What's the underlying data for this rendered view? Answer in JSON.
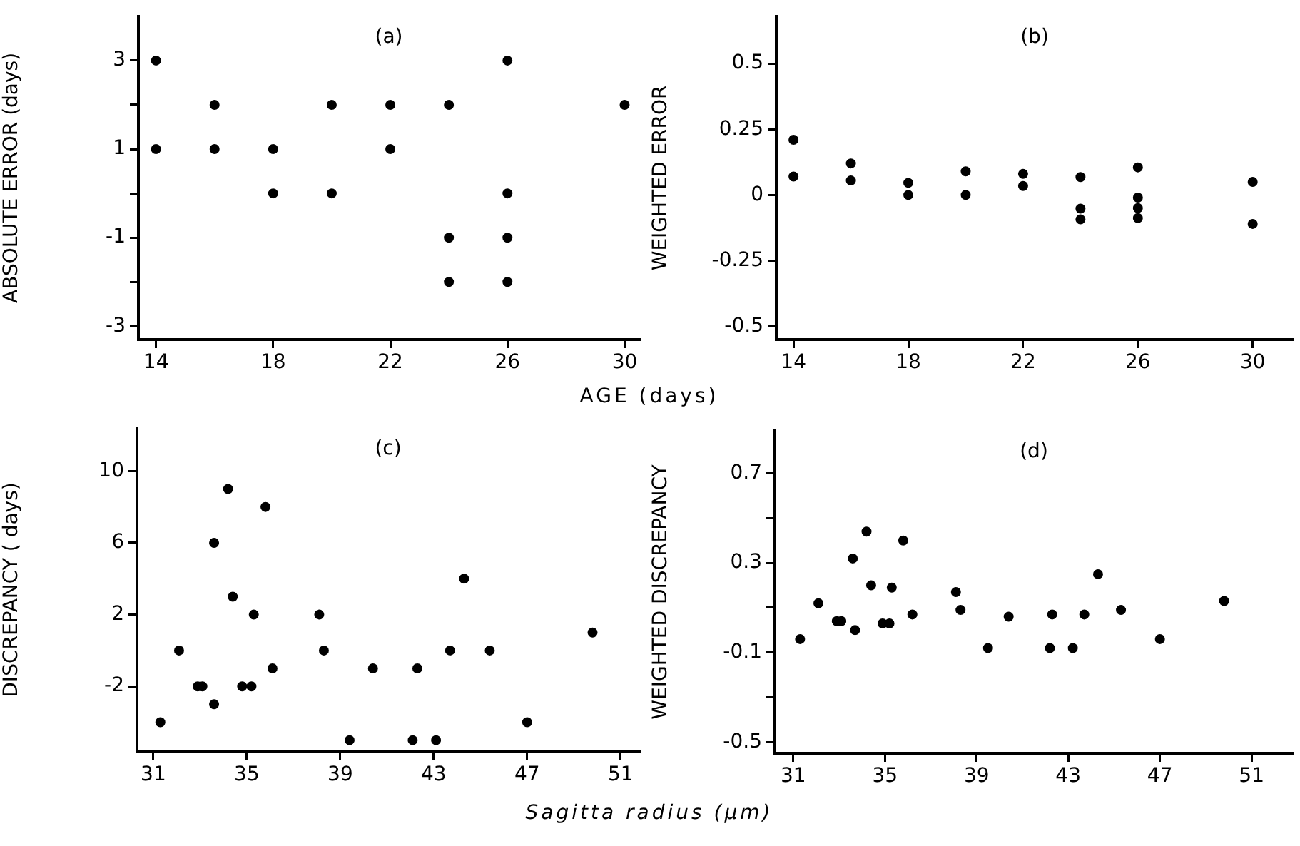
{
  "chart_data": [
    {
      "type": "scatter",
      "title": "(a)",
      "xlabel": "AGE (days)",
      "ylabel": "ABSOLUTE ERROR (days)",
      "color": "#000000",
      "marker": "circle",
      "grid": false,
      "legend": false,
      "x": [
        14,
        14,
        16,
        16,
        18,
        18,
        20,
        20,
        22,
        22,
        24,
        24,
        24,
        26,
        26,
        26,
        26,
        30
      ],
      "values": [
        3,
        1,
        2,
        1,
        1,
        0,
        2,
        0,
        2,
        1,
        2,
        -1,
        -2,
        3,
        0,
        -1,
        -2,
        2
      ],
      "xlim": [
        13.4,
        30.5
      ],
      "xticks": [
        14,
        18,
        22,
        26,
        30
      ],
      "ylim": [
        -3.3,
        4
      ],
      "yticks": [
        3,
        {
          "value": 2,
          "label": null
        },
        1,
        {
          "value": 0,
          "label": null
        },
        -1,
        {
          "value": -2,
          "label": null
        },
        -3
      ]
    },
    {
      "type": "scatter",
      "title": "(b)",
      "ylabel": "WEIGHTED ERROR",
      "color": "#000000",
      "marker": "circle",
      "grid": false,
      "legend": false,
      "x": [
        14,
        14,
        16,
        16,
        18,
        18,
        20,
        20,
        22,
        22,
        24,
        24,
        24,
        26,
        26,
        26,
        26,
        30,
        30
      ],
      "values": [
        0.21,
        0.07,
        0.12,
        0.055,
        0.046,
        0,
        0.09,
        0,
        0.08,
        0.034,
        0.068,
        -0.052,
        -0.093,
        0.105,
        -0.01,
        -0.05,
        -0.088,
        0.05,
        -0.11
      ],
      "xlim": [
        13.4,
        31.4
      ],
      "xticks": [
        14,
        18,
        22,
        26,
        30
      ],
      "ylim": [
        -0.55,
        0.68
      ],
      "yticks": [
        0.5,
        0.25,
        0,
        -0.25,
        -0.5
      ]
    },
    {
      "type": "scatter",
      "title": "(c)",
      "xlabel": "Sagitta radius (μm)",
      "ylabel": "DISCREPANCY ( days)",
      "color": "#000000",
      "marker": "circle",
      "grid": false,
      "legend": false,
      "x": [
        31.3,
        32.1,
        32.9,
        33.1,
        33.6,
        33.6,
        34.2,
        34.4,
        34.8,
        35.2,
        35.3,
        35.8,
        36.1,
        38.1,
        38.3,
        39.4,
        40.4,
        42.1,
        42.3,
        43.1,
        43.7,
        44.3,
        45.4,
        47,
        49.8
      ],
      "values": [
        -4,
        0,
        -2,
        -2,
        6,
        -3,
        9,
        3,
        -2,
        -2,
        2,
        8,
        -1,
        2,
        0,
        -5,
        -1,
        -5,
        -1,
        -5,
        0,
        4,
        0,
        -4,
        1
      ],
      "xlim": [
        30.3,
        51.8
      ],
      "xticks": [
        31,
        35,
        39,
        43,
        47,
        51
      ],
      "ylim": [
        -5.65,
        12.4
      ],
      "yticks": [
        10,
        6,
        2,
        -2
      ]
    },
    {
      "type": "scatter",
      "title": "(d)",
      "ylabel": "WEIGHTED DISCREPANCY",
      "color": "#000000",
      "marker": "circle",
      "grid": false,
      "legend": false,
      "x": [
        31.3,
        32.1,
        32.9,
        33.1,
        33.6,
        33.7,
        34.2,
        34.4,
        34.9,
        35.2,
        35.3,
        35.8,
        36.2,
        38.1,
        38.3,
        39.5,
        40.4,
        42.2,
        42.3,
        43.2,
        43.7,
        44.3,
        45.3,
        47,
        49.8
      ],
      "values": [
        -0.04,
        0.12,
        0.04,
        0.04,
        0.32,
        0,
        0.44,
        0.2,
        0.03,
        0.03,
        0.19,
        0.4,
        0.07,
        0.17,
        0.09,
        -0.08,
        0.06,
        -0.08,
        0.07,
        -0.08,
        0.07,
        0.25,
        0.09,
        -0.04,
        0.13
      ],
      "xlim": [
        30.2,
        52.8
      ],
      "xticks": [
        31,
        35,
        39,
        43,
        47,
        51
      ],
      "ylim": [
        -0.55,
        0.89
      ],
      "yticks": [
        0.7,
        {
          "value": 0.5,
          "label": null
        },
        0.3,
        {
          "value": 0.1,
          "label": null
        },
        -0.1,
        {
          "value": -0.3,
          "label": null
        },
        -0.5
      ]
    }
  ]
}
